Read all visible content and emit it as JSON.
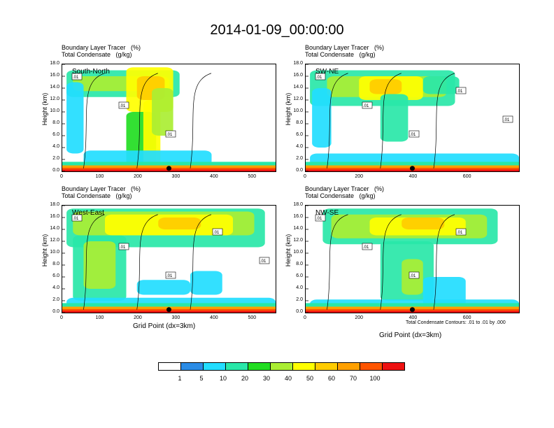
{
  "chart_data": {
    "title": "2014-01-09_00:00:00",
    "subtitle_line1": "Boundary Layer Tracer   (%)",
    "subtitle_line2": "Total Condensate   (g/kg)",
    "ylabel": "Height (km)",
    "xlabel": "Grid Point (dx=3km)",
    "contour_note": "Total Condensate Contours: .01 to .01 by .000",
    "y_ticks": [
      "0.0",
      "2.0",
      "4.0",
      "6.0",
      "8.0",
      "10.0",
      "12.0",
      "14.0",
      "16.0",
      "18.0"
    ],
    "ylim": [
      0,
      18
    ],
    "colorbar": {
      "colors": [
        "#ffffff",
        "#2b8ce6",
        "#22ddff",
        "#29e7a8",
        "#22dd22",
        "#aaee33",
        "#ffff00",
        "#ffcc00",
        "#ffa000",
        "#ff5500",
        "#ee1111"
      ],
      "labels": [
        "1",
        "5",
        "10",
        "20",
        "30",
        "40",
        "50",
        "60",
        "70",
        "100"
      ]
    },
    "panels": [
      {
        "type": "heatmap",
        "label": "South-North",
        "xlim": [
          0,
          560
        ],
        "x_ticks": [
          {
            "v": 0,
            "t": "0"
          },
          {
            "v": 100,
            "t": "100"
          },
          {
            "v": 200,
            "t": "200"
          },
          {
            "v": 300,
            "t": "300"
          },
          {
            "v": 400,
            "t": "400"
          },
          {
            "v": 500,
            "t": "500"
          }
        ],
        "marker_x": 280,
        "contour_labels": [
          ".01",
          ".01",
          ".01"
        ]
      },
      {
        "type": "heatmap",
        "label": "SW-NE",
        "xlim": [
          0,
          790
        ],
        "x_ticks": [
          {
            "v": 0,
            "t": "0"
          },
          {
            "v": 200,
            "t": "200"
          },
          {
            "v": 400,
            "t": "400"
          },
          {
            "v": 600,
            "t": "600"
          }
        ],
        "marker_x": 395,
        "contour_labels": [
          ".01",
          ".01",
          ".01",
          ".01",
          ".01"
        ]
      },
      {
        "type": "heatmap",
        "label": "West-East",
        "xlim": [
          0,
          560
        ],
        "x_ticks": [
          {
            "v": 0,
            "t": "0"
          },
          {
            "v": 100,
            "t": "100"
          },
          {
            "v": 200,
            "t": "200"
          },
          {
            "v": 300,
            "t": "300"
          },
          {
            "v": 400,
            "t": "400"
          },
          {
            "v": 500,
            "t": "500"
          }
        ],
        "marker_x": 280,
        "contour_labels": [
          ".01",
          ".01",
          ".01",
          ".01",
          ".01"
        ]
      },
      {
        "type": "heatmap",
        "label": "NW-SE",
        "xlim": [
          0,
          790
        ],
        "x_ticks": [
          {
            "v": 0,
            "t": "0"
          },
          {
            "v": 200,
            "t": "200"
          },
          {
            "v": 400,
            "t": "400"
          },
          {
            "v": 600,
            "t": "600"
          }
        ],
        "marker_x": 395,
        "contour_labels": [
          ".01",
          ".01",
          ".01",
          ".01"
        ]
      }
    ]
  }
}
